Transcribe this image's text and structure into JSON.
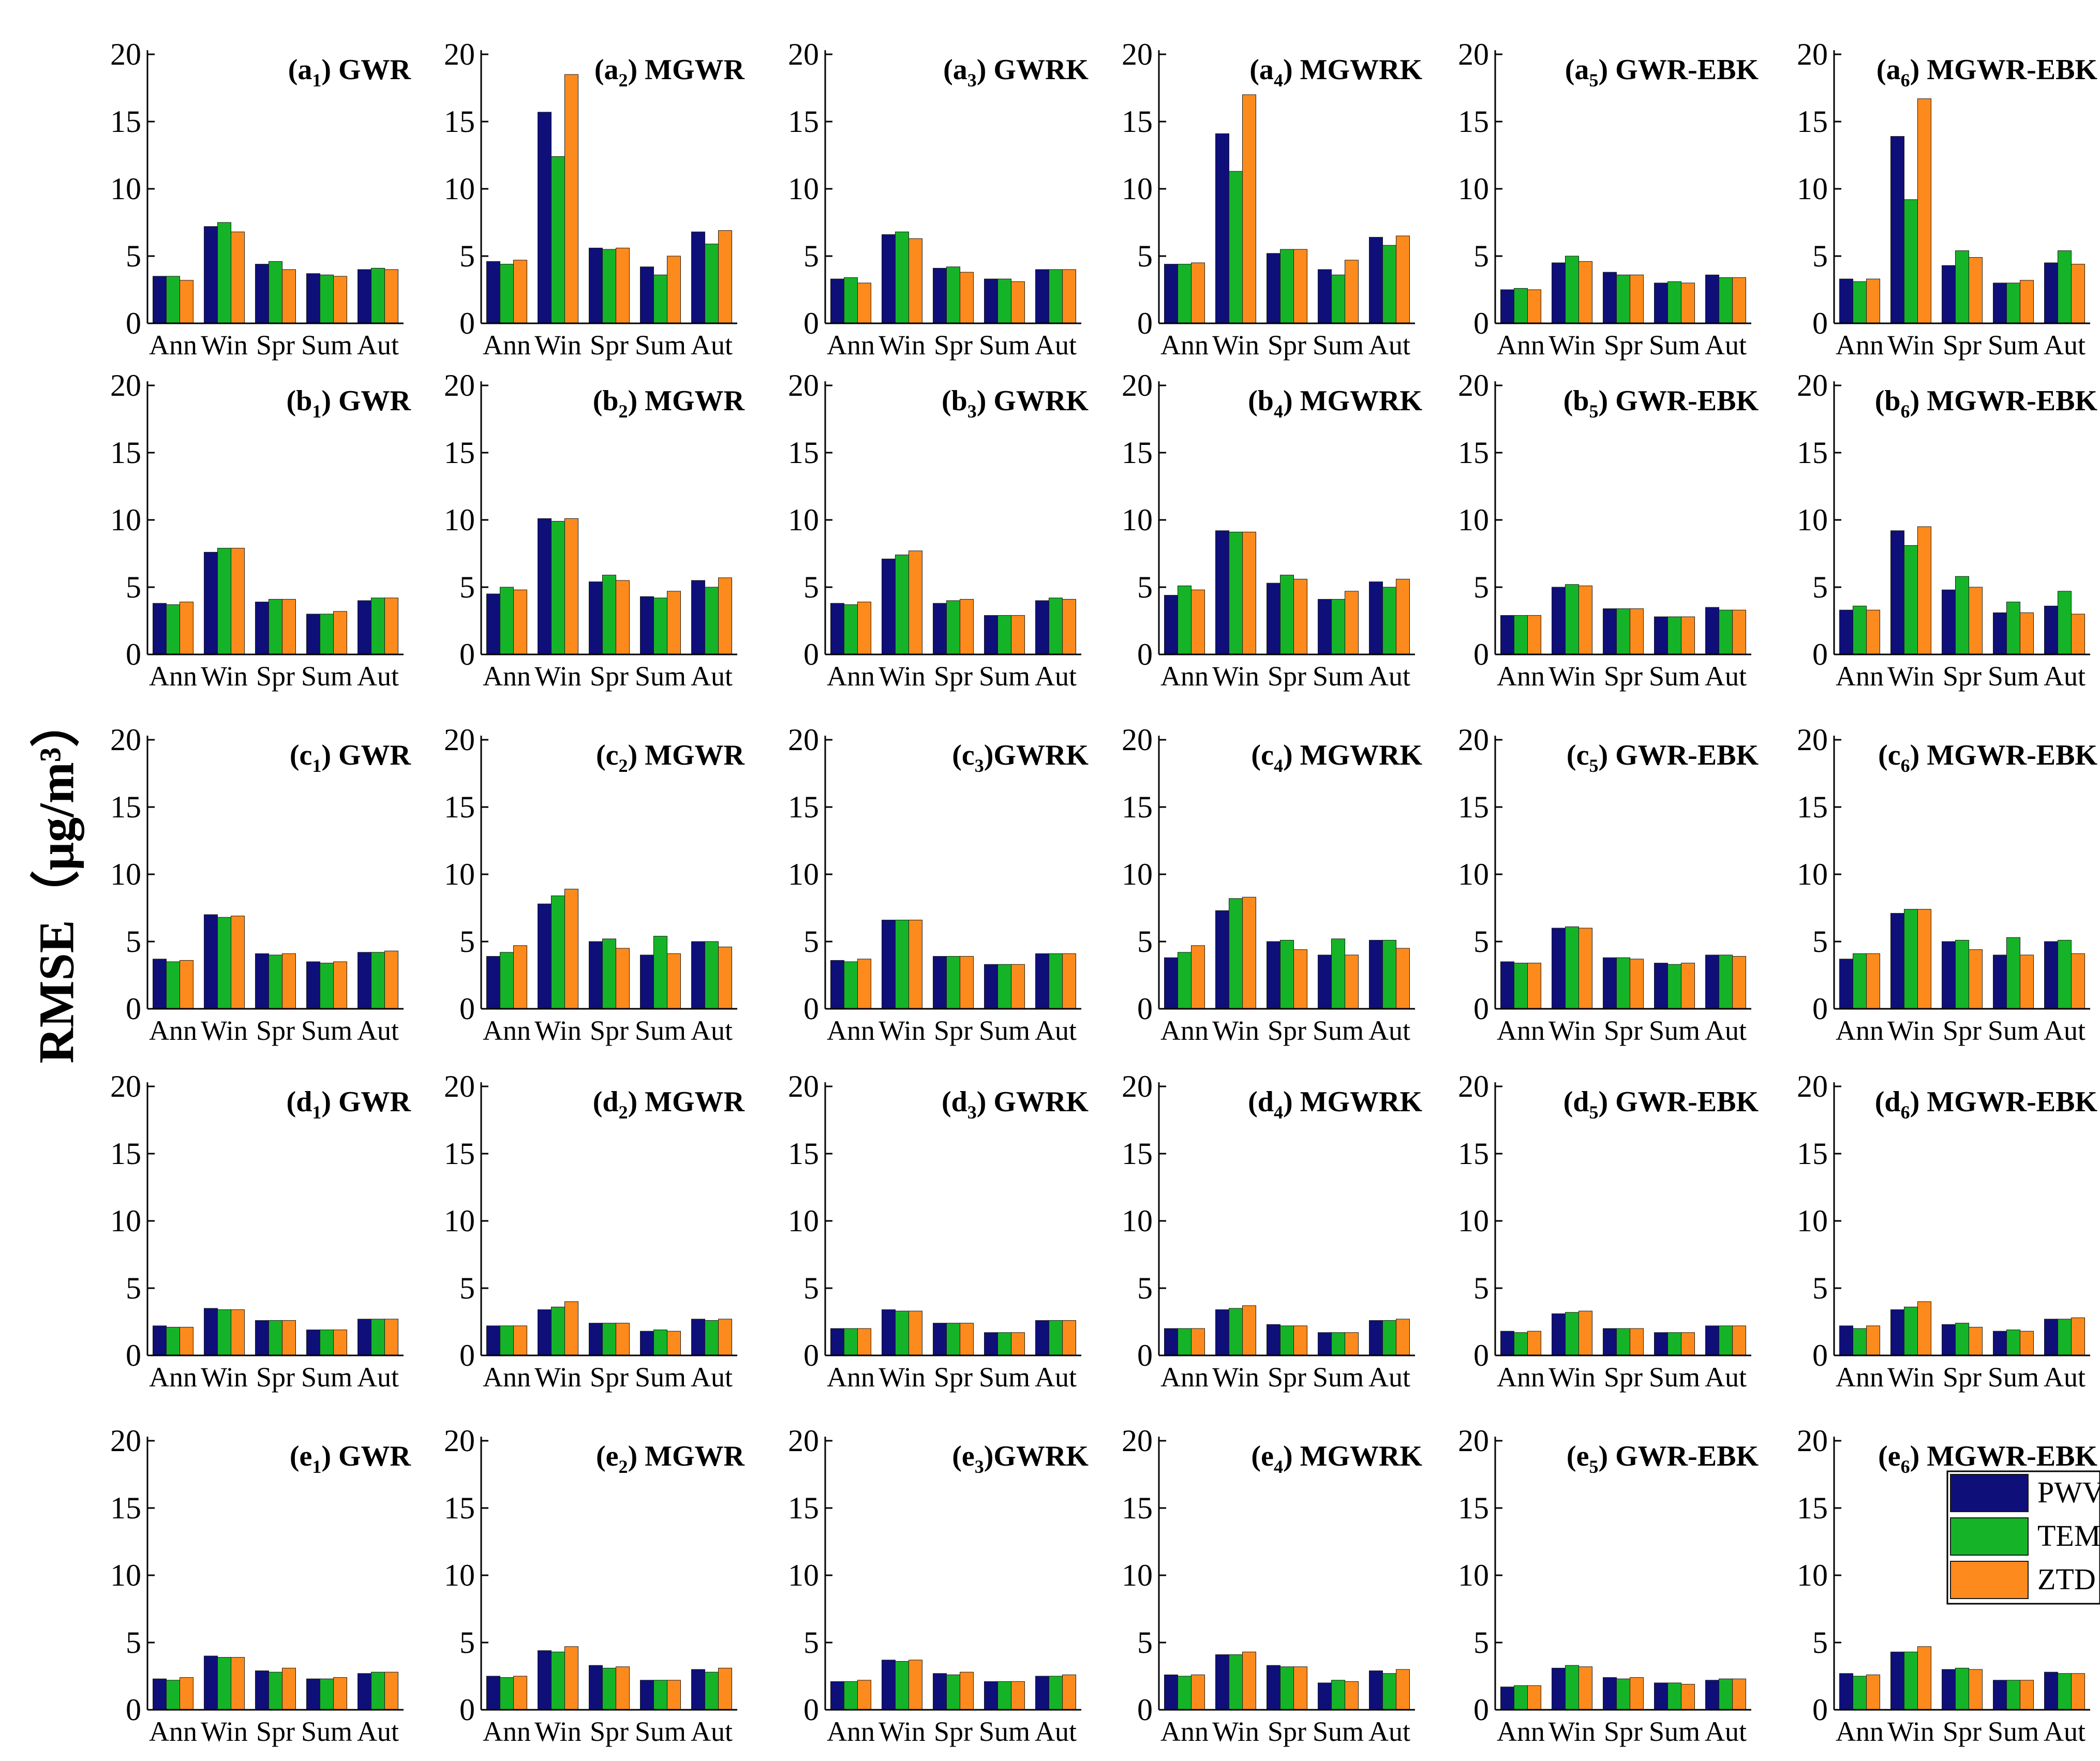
{
  "y_axis_label": "RMSE（μg/m³）",
  "colors": {
    "PWV": "#0f0f7a",
    "TEM": "#15b428",
    "ZTD": "#fc8a1c",
    "axis": "#000000"
  },
  "legend": {
    "items": [
      "PWV",
      "TEM",
      "ZTD"
    ],
    "placement": "inside panel e6, right"
  },
  "chart_data": {
    "type": "bar",
    "layout": "grouped bar small multiples, 5 rows x 6 columns",
    "categories": [
      "Ann",
      "Win",
      "Spr",
      "Sum",
      "Aut"
    ],
    "series_names": [
      "PWV",
      "TEM",
      "ZTD"
    ],
    "ylim": [
      0,
      20
    ],
    "yticks": [
      0,
      5,
      10,
      15,
      20
    ],
    "ylabel": "RMSE（μg/m³）",
    "panels": [
      {
        "letter": "a",
        "sub": "1",
        "sep": " ",
        "model": "GWR",
        "values": [
          [
            3.5,
            3.5,
            3.2
          ],
          [
            7.2,
            7.5,
            6.8
          ],
          [
            4.4,
            4.6,
            4.0
          ],
          [
            3.7,
            3.6,
            3.5
          ],
          [
            4.0,
            4.1,
            4.0
          ]
        ]
      },
      {
        "letter": "a",
        "sub": "2",
        "sep": " ",
        "model": "MGWR",
        "values": [
          [
            4.6,
            4.4,
            4.7
          ],
          [
            15.7,
            12.4,
            18.5
          ],
          [
            5.6,
            5.5,
            5.6
          ],
          [
            4.2,
            3.6,
            5.0
          ],
          [
            6.8,
            5.9,
            6.9
          ]
        ]
      },
      {
        "letter": "a",
        "sub": "3",
        "sep": " ",
        "model": "GWRK",
        "values": [
          [
            3.3,
            3.4,
            3.0
          ],
          [
            6.6,
            6.8,
            6.3
          ],
          [
            4.1,
            4.2,
            3.8
          ],
          [
            3.3,
            3.3,
            3.1
          ],
          [
            4.0,
            4.0,
            4.0
          ]
        ]
      },
      {
        "letter": "a",
        "sub": "4",
        "sep": " ",
        "model": "MGWRK",
        "values": [
          [
            4.4,
            4.4,
            4.5
          ],
          [
            14.1,
            11.3,
            17.0
          ],
          [
            5.2,
            5.5,
            5.5
          ],
          [
            4.0,
            3.6,
            4.7
          ],
          [
            6.4,
            5.8,
            6.5
          ]
        ]
      },
      {
        "letter": "a",
        "sub": "5",
        "sep": " ",
        "model": "GWR-EBK",
        "values": [
          [
            2.5,
            2.6,
            2.5
          ],
          [
            4.5,
            5.0,
            4.6
          ],
          [
            3.8,
            3.6,
            3.6
          ],
          [
            3.0,
            3.1,
            3.0
          ],
          [
            3.6,
            3.4,
            3.4
          ]
        ]
      },
      {
        "letter": "a",
        "sub": "6",
        "sep": " ",
        "model": "MGWR-EBK",
        "values": [
          [
            3.3,
            3.1,
            3.3
          ],
          [
            13.9,
            9.2,
            16.7
          ],
          [
            4.3,
            5.4,
            4.9
          ],
          [
            3.0,
            3.0,
            3.2
          ],
          [
            4.5,
            5.4,
            4.4
          ]
        ]
      },
      {
        "letter": "b",
        "sub": "1",
        "sep": " ",
        "model": "GWR",
        "values": [
          [
            3.8,
            3.7,
            3.9
          ],
          [
            7.6,
            7.9,
            7.9
          ],
          [
            3.9,
            4.1,
            4.1
          ],
          [
            3.0,
            3.0,
            3.2
          ],
          [
            4.0,
            4.2,
            4.2
          ]
        ]
      },
      {
        "letter": "b",
        "sub": "2",
        "sep": " ",
        "model": "MGWR",
        "values": [
          [
            4.5,
            5.0,
            4.8
          ],
          [
            10.1,
            9.9,
            10.1
          ],
          [
            5.4,
            5.9,
            5.5
          ],
          [
            4.3,
            4.2,
            4.7
          ],
          [
            5.5,
            5.0,
            5.7
          ]
        ]
      },
      {
        "letter": "b",
        "sub": "3",
        "sep": " ",
        "model": "GWRK",
        "values": [
          [
            3.8,
            3.7,
            3.9
          ],
          [
            7.1,
            7.4,
            7.7
          ],
          [
            3.8,
            4.0,
            4.1
          ],
          [
            2.9,
            2.9,
            2.9
          ],
          [
            4.0,
            4.2,
            4.1
          ]
        ]
      },
      {
        "letter": "b",
        "sub": "4",
        "sep": " ",
        "model": "MGWRK",
        "values": [
          [
            4.4,
            5.1,
            4.8
          ],
          [
            9.2,
            9.1,
            9.1
          ],
          [
            5.3,
            5.9,
            5.6
          ],
          [
            4.1,
            4.1,
            4.7
          ],
          [
            5.4,
            5.0,
            5.6
          ]
        ]
      },
      {
        "letter": "b",
        "sub": "5",
        "sep": " ",
        "model": "GWR-EBK",
        "values": [
          [
            2.9,
            2.9,
            2.9
          ],
          [
            5.0,
            5.2,
            5.1
          ],
          [
            3.4,
            3.4,
            3.4
          ],
          [
            2.8,
            2.8,
            2.8
          ],
          [
            3.5,
            3.3,
            3.3
          ]
        ]
      },
      {
        "letter": "b",
        "sub": "6",
        "sep": " ",
        "model": "MGWR-EBK",
        "values": [
          [
            3.3,
            3.6,
            3.3
          ],
          [
            9.2,
            8.1,
            9.5
          ],
          [
            4.8,
            5.8,
            5.0
          ],
          [
            3.1,
            3.9,
            3.1
          ],
          [
            3.6,
            4.7,
            3.0
          ]
        ]
      },
      {
        "letter": "c",
        "sub": "1",
        "sep": " ",
        "model": "GWR",
        "values": [
          [
            3.7,
            3.5,
            3.6
          ],
          [
            7.0,
            6.8,
            6.9
          ],
          [
            4.1,
            4.0,
            4.1
          ],
          [
            3.5,
            3.4,
            3.5
          ],
          [
            4.2,
            4.2,
            4.3
          ]
        ]
      },
      {
        "letter": "c",
        "sub": "2",
        "sep": " ",
        "model": "MGWR",
        "values": [
          [
            3.9,
            4.2,
            4.7
          ],
          [
            7.8,
            8.4,
            8.9
          ],
          [
            5.0,
            5.2,
            4.5
          ],
          [
            4.0,
            5.4,
            4.1
          ],
          [
            5.0,
            5.0,
            4.6
          ]
        ]
      },
      {
        "letter": "c",
        "sub": "3",
        "sep": "",
        "model": "GWRK",
        "values": [
          [
            3.6,
            3.5,
            3.7
          ],
          [
            6.6,
            6.6,
            6.6
          ],
          [
            3.9,
            3.9,
            3.9
          ],
          [
            3.3,
            3.3,
            3.3
          ],
          [
            4.1,
            4.1,
            4.1
          ]
        ]
      },
      {
        "letter": "c",
        "sub": "4",
        "sep": " ",
        "model": "MGWRK",
        "values": [
          [
            3.8,
            4.2,
            4.7
          ],
          [
            7.3,
            8.2,
            8.3
          ],
          [
            5.0,
            5.1,
            4.4
          ],
          [
            4.0,
            5.2,
            4.0
          ],
          [
            5.1,
            5.1,
            4.5
          ]
        ]
      },
      {
        "letter": "c",
        "sub": "5",
        "sep": " ",
        "model": "GWR-EBK",
        "values": [
          [
            3.5,
            3.4,
            3.4
          ],
          [
            6.0,
            6.1,
            6.0
          ],
          [
            3.8,
            3.8,
            3.7
          ],
          [
            3.4,
            3.3,
            3.4
          ],
          [
            4.0,
            4.0,
            3.9
          ]
        ]
      },
      {
        "letter": "c",
        "sub": "6",
        "sep": " ",
        "model": "MGWR-EBK",
        "values": [
          [
            3.7,
            4.1,
            4.1
          ],
          [
            7.1,
            7.4,
            7.4
          ],
          [
            5.0,
            5.1,
            4.4
          ],
          [
            4.0,
            5.3,
            4.0
          ],
          [
            5.0,
            5.1,
            4.1
          ]
        ]
      },
      {
        "letter": "d",
        "sub": "1",
        "sep": " ",
        "model": "GWR",
        "values": [
          [
            2.2,
            2.1,
            2.1
          ],
          [
            3.5,
            3.4,
            3.4
          ],
          [
            2.6,
            2.6,
            2.6
          ],
          [
            1.9,
            1.9,
            1.9
          ],
          [
            2.7,
            2.7,
            2.7
          ]
        ]
      },
      {
        "letter": "d",
        "sub": "2",
        "sep": " ",
        "model": "MGWR",
        "values": [
          [
            2.2,
            2.2,
            2.2
          ],
          [
            3.4,
            3.6,
            4.0
          ],
          [
            2.4,
            2.4,
            2.4
          ],
          [
            1.8,
            1.9,
            1.8
          ],
          [
            2.7,
            2.6,
            2.7
          ]
        ]
      },
      {
        "letter": "d",
        "sub": "3",
        "sep": " ",
        "model": "GWRK",
        "values": [
          [
            2.0,
            2.0,
            2.0
          ],
          [
            3.4,
            3.3,
            3.3
          ],
          [
            2.4,
            2.4,
            2.4
          ],
          [
            1.7,
            1.7,
            1.7
          ],
          [
            2.6,
            2.6,
            2.6
          ]
        ]
      },
      {
        "letter": "d",
        "sub": "4",
        "sep": " ",
        "model": "MGWRK",
        "values": [
          [
            2.0,
            2.0,
            2.0
          ],
          [
            3.4,
            3.5,
            3.7
          ],
          [
            2.3,
            2.2,
            2.2
          ],
          [
            1.7,
            1.7,
            1.7
          ],
          [
            2.6,
            2.6,
            2.7
          ]
        ]
      },
      {
        "letter": "d",
        "sub": "5",
        "sep": " ",
        "model": "GWR-EBK",
        "values": [
          [
            1.8,
            1.7,
            1.8
          ],
          [
            3.1,
            3.2,
            3.3
          ],
          [
            2.0,
            2.0,
            2.0
          ],
          [
            1.7,
            1.7,
            1.7
          ],
          [
            2.2,
            2.2,
            2.2
          ]
        ]
      },
      {
        "letter": "d",
        "sub": "6",
        "sep": " ",
        "model": "MGWR-EBK",
        "values": [
          [
            2.2,
            2.0,
            2.2
          ],
          [
            3.4,
            3.6,
            4.0
          ],
          [
            2.3,
            2.4,
            2.1
          ],
          [
            1.8,
            1.9,
            1.8
          ],
          [
            2.7,
            2.7,
            2.8
          ]
        ]
      },
      {
        "letter": "e",
        "sub": "1",
        "sep": " ",
        "model": "GWR",
        "values": [
          [
            2.3,
            2.2,
            2.4
          ],
          [
            4.0,
            3.9,
            3.9
          ],
          [
            2.9,
            2.8,
            3.1
          ],
          [
            2.3,
            2.3,
            2.4
          ],
          [
            2.7,
            2.8,
            2.8
          ]
        ]
      },
      {
        "letter": "e",
        "sub": "2",
        "sep": " ",
        "model": "MGWR",
        "values": [
          [
            2.5,
            2.4,
            2.5
          ],
          [
            4.4,
            4.3,
            4.7
          ],
          [
            3.3,
            3.1,
            3.2
          ],
          [
            2.2,
            2.2,
            2.2
          ],
          [
            3.0,
            2.8,
            3.1
          ]
        ]
      },
      {
        "letter": "e",
        "sub": "3",
        "sep": "",
        "model": "GWRK",
        "values": [
          [
            2.1,
            2.1,
            2.2
          ],
          [
            3.7,
            3.6,
            3.7
          ],
          [
            2.7,
            2.6,
            2.8
          ],
          [
            2.1,
            2.1,
            2.1
          ],
          [
            2.5,
            2.5,
            2.6
          ]
        ]
      },
      {
        "letter": "e",
        "sub": "4",
        "sep": " ",
        "model": "MGWRK",
        "values": [
          [
            2.6,
            2.5,
            2.6
          ],
          [
            4.1,
            4.1,
            4.3
          ],
          [
            3.3,
            3.2,
            3.2
          ],
          [
            2.0,
            2.2,
            2.1
          ],
          [
            2.9,
            2.7,
            3.0
          ]
        ]
      },
      {
        "letter": "e",
        "sub": "5",
        "sep": " ",
        "model": "GWR-EBK",
        "values": [
          [
            1.7,
            1.8,
            1.8
          ],
          [
            3.1,
            3.3,
            3.2
          ],
          [
            2.4,
            2.3,
            2.4
          ],
          [
            2.0,
            2.0,
            1.9
          ],
          [
            2.2,
            2.3,
            2.3
          ]
        ]
      },
      {
        "letter": "e",
        "sub": "6",
        "sep": " ",
        "model": "MGWR-EBK",
        "values": [
          [
            2.7,
            2.5,
            2.6
          ],
          [
            4.3,
            4.3,
            4.7
          ],
          [
            3.0,
            3.1,
            3.0
          ],
          [
            2.2,
            2.2,
            2.2
          ],
          [
            2.8,
            2.7,
            2.7
          ]
        ]
      }
    ]
  }
}
